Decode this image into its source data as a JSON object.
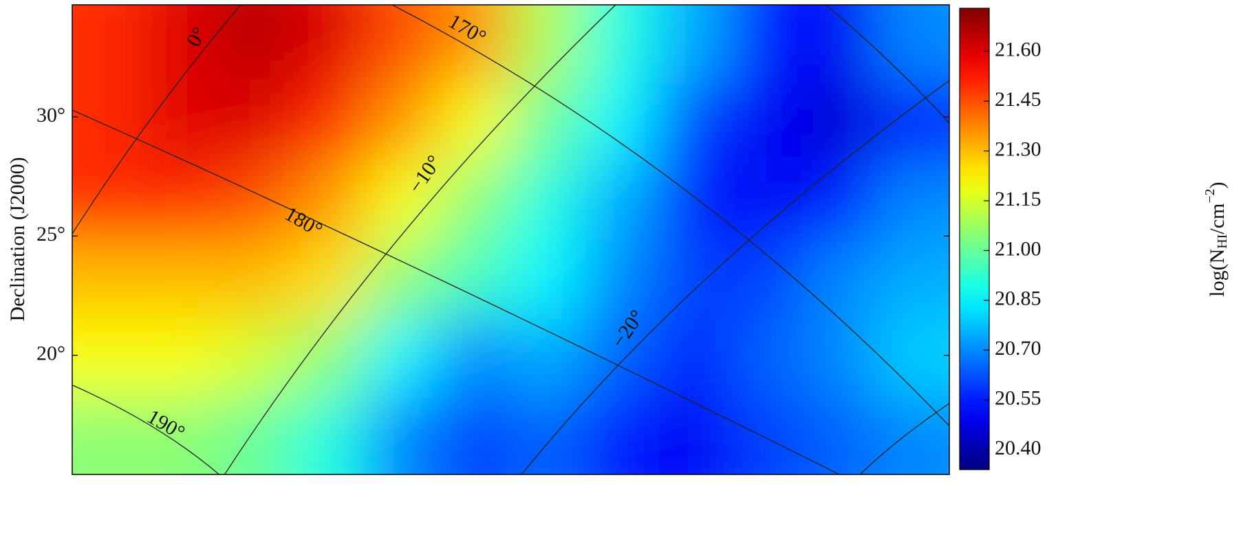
{
  "chart_data": {
    "type": "heatmap",
    "ylabel": "Declination (J2000)",
    "ylim": [
      15,
      34.7
    ],
    "yticks": [
      {
        "value": 20,
        "label": "20°"
      },
      {
        "value": 25,
        "label": "25°"
      },
      {
        "value": 30,
        "label": "30°"
      }
    ],
    "colormap": "jet",
    "clim": [
      20.34,
      21.73
    ],
    "cticks": [
      {
        "value": 20.4,
        "label": "20.40"
      },
      {
        "value": 20.55,
        "label": "20.55"
      },
      {
        "value": 20.7,
        "label": "20.70"
      },
      {
        "value": 20.85,
        "label": "20.85"
      },
      {
        "value": 21,
        "label": "21.00"
      },
      {
        "value": 21.15,
        "label": "21.15"
      },
      {
        "value": 21.3,
        "label": "21.30"
      },
      {
        "value": 21.45,
        "label": "21.45"
      },
      {
        "value": 21.6,
        "label": "21.60"
      }
    ],
    "colorbar_label": {
      "prefix": "log(N",
      "sub": "HI",
      "mid": "/cm",
      "sup": "−2",
      "suffix": ")"
    },
    "z": [
      [
        21.5,
        21.6,
        21.65,
        21.6,
        21.45,
        21.35,
        21.1,
        20.9,
        20.75,
        20.55,
        20.5,
        20.7
      ],
      [
        21.5,
        21.6,
        21.6,
        21.5,
        21.35,
        21.2,
        21.0,
        20.85,
        20.6,
        20.5,
        20.45,
        20.55
      ],
      [
        21.5,
        21.5,
        21.45,
        21.35,
        21.2,
        21.05,
        20.9,
        20.75,
        20.55,
        20.5,
        20.55,
        20.7
      ],
      [
        21.3,
        21.3,
        21.3,
        21.25,
        21.05,
        20.95,
        20.85,
        20.7,
        20.6,
        20.6,
        20.7,
        20.75
      ],
      [
        21.2,
        21.2,
        21.15,
        21.05,
        20.85,
        20.7,
        20.75,
        20.65,
        20.55,
        20.65,
        20.7,
        20.8
      ],
      [
        21.05,
        21.05,
        21.0,
        20.9,
        20.7,
        20.6,
        20.65,
        20.55,
        20.5,
        20.6,
        20.65,
        20.7
      ]
    ],
    "annotations": [
      "0°",
      "170°",
      "−10°",
      "180°",
      "−20°",
      "190°"
    ]
  }
}
